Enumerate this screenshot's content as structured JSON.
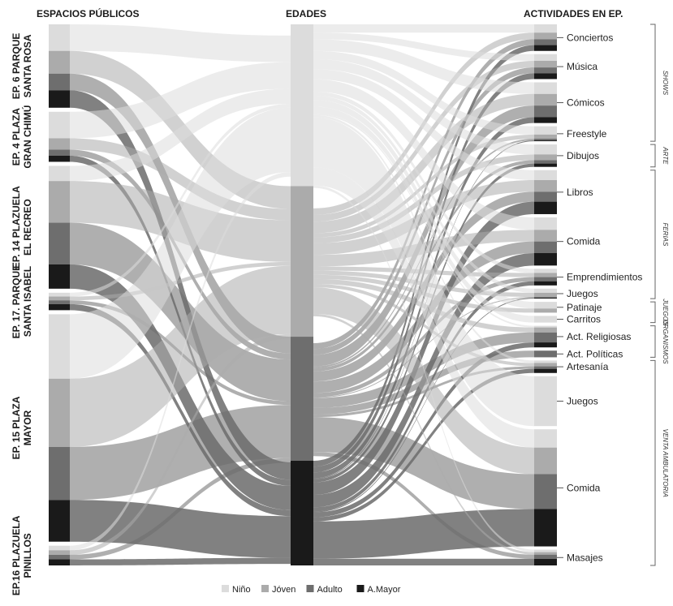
{
  "headers": {
    "left": "ESPACIOS PÚBLICOS",
    "middle": "EDADES",
    "right": "ACTIVIDADES EN EP."
  },
  "colors": {
    "Niño": "#dcdcdc",
    "Jóven": "#ababab",
    "Adulto": "#6e6e6e",
    "A.Mayor": "#1a1a1a"
  },
  "legend": [
    "Niño",
    "Jóven",
    "Adulto",
    "A.Mayor"
  ],
  "left_nodes": [
    {
      "line1": "EP. 6 PARQUE",
      "line2": "SANTA ROSA",
      "values": [
        0.35,
        0.3,
        0.22,
        0.23
      ]
    },
    {
      "line1": "EP. 4 PLAZA",
      "line2": "GRAN CHIMÚ",
      "values": [
        0.35,
        0.15,
        0.08,
        0.08
      ]
    },
    {
      "line1": "EP. 14 PLAZUELA",
      "line2": "EL RECREO",
      "values": [
        0.2,
        0.55,
        0.55,
        0.32
      ]
    },
    {
      "line1": "EP. 17. PARQUE",
      "line2": "SANTA ISABEL",
      "values": [
        0.05,
        0.05,
        0.05,
        0.08
      ]
    },
    {
      "line1": "EP. 15 PLAZA",
      "line2": "MAYOR",
      "values": [
        0.85,
        0.9,
        0.7,
        0.55
      ]
    },
    {
      "line1": "EP.16 PLAZUELA",
      "line2": "PINILLOS",
      "values": [
        0.06,
        0.06,
        0.06,
        0.08
      ]
    }
  ],
  "age_nodes": [
    "Niño",
    "Jóven",
    "Adulto",
    "A.Mayor"
  ],
  "right_nodes": [
    {
      "label": "Conciertos",
      "values": [
        0.1,
        0.08,
        0.07,
        0.07
      ]
    },
    {
      "label": "Música",
      "values": [
        0.08,
        0.08,
        0.07,
        0.07
      ]
    },
    {
      "label": "Cómicos",
      "values": [
        0.14,
        0.14,
        0.14,
        0.07
      ]
    },
    {
      "label": "Freestyle",
      "values": [
        0.1,
        0.05,
        0.02,
        0.01
      ]
    },
    {
      "label": "Dibujos",
      "values": [
        0.12,
        0.07,
        0.04,
        0.04
      ]
    },
    {
      "label": "Libros",
      "values": [
        0.12,
        0.14,
        0.12,
        0.15
      ]
    },
    {
      "label": "Comida",
      "values": [
        0.15,
        0.14,
        0.14,
        0.15
      ]
    },
    {
      "label": "Emprendimientos",
      "values": [
        0.05,
        0.05,
        0.05,
        0.05
      ]
    },
    {
      "label": "Juegos",
      "values": [
        0.05,
        0.05,
        0.01,
        0.01
      ]
    },
    {
      "label": "Patinaje",
      "values": [
        0.08,
        0.05,
        0.0,
        0.0
      ]
    },
    {
      "label": "Carritos",
      "values": [
        0.08,
        0.0,
        0.0,
        0.0
      ]
    },
    {
      "label": "Act. Religiosas",
      "values": [
        0.02,
        0.06,
        0.12,
        0.06
      ]
    },
    {
      "label": "Act. Políticas",
      "values": [
        0.0,
        0.0,
        0.08,
        0.0
      ]
    },
    {
      "label": "Artesanía",
      "values": [
        0.03,
        0.04,
        0.03,
        0.05
      ]
    },
    {
      "label": "Juegos",
      "values": [
        0.6,
        0.0,
        0.0,
        0.0
      ]
    },
    {
      "label": "Comida",
      "values": [
        0.22,
        0.32,
        0.42,
        0.45
      ]
    },
    {
      "label": "Masajes",
      "values": [
        0.03,
        0.03,
        0.05,
        0.08
      ]
    }
  ],
  "groups": [
    {
      "label": "SHOWS",
      "from": 0,
      "to": 3
    },
    {
      "label": "ARTE",
      "from": 4,
      "to": 4
    },
    {
      "label": "FERIAS",
      "from": 5,
      "to": 8
    },
    {
      "label": "JUEGOS",
      "from": 9,
      "to": 10
    },
    {
      "label": "ORGANISMOS",
      "from": 11,
      "to": 12
    },
    {
      "label": "VENTA AMBULATORIA",
      "from": 13,
      "to": 16
    }
  ]
}
